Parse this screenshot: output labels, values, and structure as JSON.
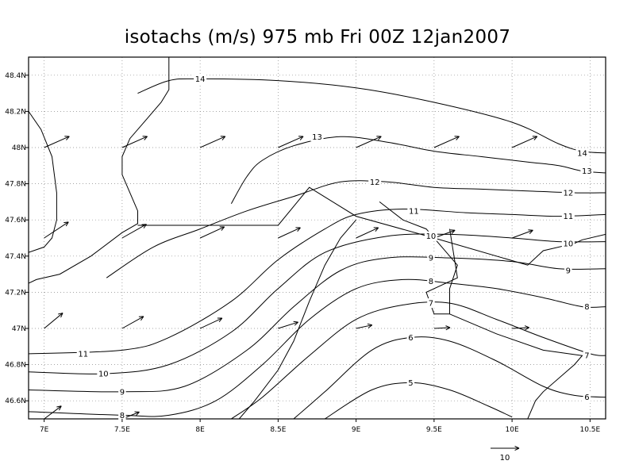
{
  "title": "isotachs (m/s) 975 mb Fri 00Z 12jan2007",
  "chart_data": {
    "type": "contour-map",
    "xlim": [
      6.9,
      10.6
    ],
    "ylim": [
      46.5,
      48.5
    ],
    "x_ticks": [
      {
        "value": 7.0,
        "label": "7E"
      },
      {
        "value": 7.5,
        "label": "7.5E"
      },
      {
        "value": 8.0,
        "label": "8E"
      },
      {
        "value": 8.5,
        "label": "8.5E"
      },
      {
        "value": 9.0,
        "label": "9E"
      },
      {
        "value": 9.5,
        "label": "9.5E"
      },
      {
        "value": 10.0,
        "label": "10E"
      },
      {
        "value": 10.5,
        "label": "10.5E"
      }
    ],
    "y_ticks": [
      {
        "value": 46.6,
        "label": "46.6N"
      },
      {
        "value": 46.8,
        "label": "46.8N"
      },
      {
        "value": 47.0,
        "label": "47N"
      },
      {
        "value": 47.2,
        "label": "47.2N"
      },
      {
        "value": 47.4,
        "label": "47.4N"
      },
      {
        "value": 47.6,
        "label": "47.6N"
      },
      {
        "value": 47.8,
        "label": "47.8N"
      },
      {
        "value": 48.0,
        "label": "48N"
      },
      {
        "value": 48.2,
        "label": "48.2N"
      },
      {
        "value": 48.4,
        "label": "48.4N"
      }
    ],
    "grid": true,
    "contours": [
      {
        "level": "14",
        "points": [
          [
            7.6,
            48.3
          ],
          [
            7.8,
            48.37
          ],
          [
            8.0,
            48.38
          ],
          [
            8.5,
            48.37
          ],
          [
            9.0,
            48.33
          ],
          [
            9.5,
            48.25
          ],
          [
            10.0,
            48.14
          ],
          [
            10.3,
            48.02
          ],
          [
            10.45,
            47.98
          ],
          [
            10.6,
            47.97
          ]
        ],
        "labels": [
          [
            8.0,
            48.38
          ],
          [
            10.45,
            47.97
          ]
        ]
      },
      {
        "level": "13",
        "points": [
          [
            8.2,
            47.69
          ],
          [
            8.3,
            47.84
          ],
          [
            8.4,
            47.93
          ],
          [
            8.6,
            48.01
          ],
          [
            8.9,
            48.06
          ],
          [
            9.2,
            48.03
          ],
          [
            9.5,
            47.98
          ],
          [
            9.8,
            47.95
          ],
          [
            10.1,
            47.92
          ],
          [
            10.3,
            47.9
          ],
          [
            10.45,
            47.87
          ],
          [
            10.6,
            47.86
          ]
        ],
        "labels": [
          [
            8.75,
            48.06
          ],
          [
            10.48,
            47.87
          ]
        ]
      },
      {
        "level": "12",
        "points": [
          [
            7.4,
            47.28
          ],
          [
            7.7,
            47.45
          ],
          [
            8.0,
            47.55
          ],
          [
            8.3,
            47.65
          ],
          [
            8.6,
            47.73
          ],
          [
            8.9,
            47.81
          ],
          [
            9.2,
            47.81
          ],
          [
            9.5,
            47.78
          ],
          [
            9.8,
            47.77
          ],
          [
            10.1,
            47.76
          ],
          [
            10.4,
            47.75
          ],
          [
            10.6,
            47.75
          ]
        ],
        "labels": [
          [
            9.12,
            47.81
          ],
          [
            10.36,
            47.75
          ]
        ]
      },
      {
        "level": "11",
        "points": [
          [
            6.9,
            46.86
          ],
          [
            7.5,
            46.88
          ],
          [
            7.8,
            46.95
          ],
          [
            8.2,
            47.15
          ],
          [
            8.5,
            47.38
          ],
          [
            8.8,
            47.55
          ],
          [
            9.0,
            47.63
          ],
          [
            9.3,
            47.66
          ],
          [
            9.7,
            47.64
          ],
          [
            10.0,
            47.63
          ],
          [
            10.3,
            47.62
          ],
          [
            10.6,
            47.63
          ]
        ],
        "labels": [
          [
            7.25,
            46.86
          ],
          [
            9.37,
            47.65
          ],
          [
            10.36,
            47.62
          ]
        ]
      },
      {
        "level": "10",
        "points": [
          [
            6.9,
            46.76
          ],
          [
            7.4,
            46.75
          ],
          [
            7.8,
            46.8
          ],
          [
            8.2,
            46.98
          ],
          [
            8.5,
            47.22
          ],
          [
            8.8,
            47.42
          ],
          [
            9.2,
            47.51
          ],
          [
            9.6,
            47.52
          ],
          [
            10.0,
            47.5
          ],
          [
            10.3,
            47.48
          ],
          [
            10.6,
            47.48
          ]
        ],
        "labels": [
          [
            7.38,
            46.75
          ],
          [
            9.48,
            47.51
          ],
          [
            10.36,
            47.47
          ]
        ]
      },
      {
        "level": "9",
        "points": [
          [
            6.9,
            46.66
          ],
          [
            7.5,
            46.65
          ],
          [
            7.9,
            46.68
          ],
          [
            8.3,
            46.88
          ],
          [
            8.6,
            47.12
          ],
          [
            8.9,
            47.32
          ],
          [
            9.2,
            47.39
          ],
          [
            9.6,
            47.39
          ],
          [
            10.0,
            47.37
          ],
          [
            10.3,
            47.33
          ],
          [
            10.6,
            47.33
          ]
        ],
        "labels": [
          [
            7.5,
            46.65
          ],
          [
            9.48,
            47.39
          ],
          [
            10.36,
            47.32
          ]
        ]
      },
      {
        "level": "8",
        "points": [
          [
            6.9,
            46.54
          ],
          [
            7.5,
            46.52
          ],
          [
            7.8,
            46.52
          ],
          [
            8.1,
            46.6
          ],
          [
            8.4,
            46.8
          ],
          [
            8.7,
            47.05
          ],
          [
            9.0,
            47.22
          ],
          [
            9.3,
            47.27
          ],
          [
            9.6,
            47.25
          ],
          [
            9.9,
            47.22
          ],
          [
            10.2,
            47.17
          ],
          [
            10.45,
            47.12
          ],
          [
            10.6,
            47.12
          ]
        ],
        "labels": [
          [
            7.5,
            46.52
          ],
          [
            9.48,
            47.26
          ],
          [
            10.48,
            47.12
          ]
        ]
      },
      {
        "level": "7",
        "points": [
          [
            8.2,
            46.5
          ],
          [
            8.4,
            46.62
          ],
          [
            8.7,
            46.85
          ],
          [
            9.0,
            47.05
          ],
          [
            9.3,
            47.13
          ],
          [
            9.6,
            47.14
          ],
          [
            9.9,
            47.05
          ],
          [
            10.2,
            46.95
          ],
          [
            10.5,
            46.86
          ],
          [
            10.6,
            46.85
          ]
        ],
        "labels": [
          [
            9.48,
            47.14
          ],
          [
            10.48,
            46.85
          ]
        ]
      },
      {
        "level": "6",
        "points": [
          [
            8.6,
            46.5
          ],
          [
            8.8,
            46.65
          ],
          [
            9.1,
            46.88
          ],
          [
            9.35,
            46.95
          ],
          [
            9.6,
            46.93
          ],
          [
            9.9,
            46.82
          ],
          [
            10.2,
            46.68
          ],
          [
            10.4,
            46.63
          ],
          [
            10.6,
            46.62
          ]
        ],
        "labels": [
          [
            9.35,
            46.95
          ],
          [
            10.48,
            46.62
          ]
        ]
      },
      {
        "level": "5",
        "points": [
          [
            8.8,
            46.5
          ],
          [
            9.1,
            46.66
          ],
          [
            9.35,
            46.7
          ],
          [
            9.6,
            46.66
          ],
          [
            9.85,
            46.57
          ],
          [
            10.0,
            46.51
          ]
        ],
        "labels": [
          [
            9.35,
            46.7
          ]
        ]
      }
    ],
    "borders": [
      [
        [
          6.9,
          48.2
        ],
        [
          6.98,
          48.1
        ],
        [
          7.05,
          47.95
        ],
        [
          7.08,
          47.75
        ],
        [
          7.08,
          47.6
        ],
        [
          7.05,
          47.5
        ],
        [
          7.0,
          47.45
        ],
        [
          6.9,
          47.42
        ]
      ],
      [
        [
          6.9,
          47.25
        ],
        [
          6.95,
          47.27
        ],
        [
          7.1,
          47.3
        ],
        [
          7.3,
          47.4
        ],
        [
          7.5,
          47.53
        ],
        [
          7.6,
          47.58
        ],
        [
          7.6,
          47.65
        ],
        [
          7.5,
          47.85
        ],
        [
          7.5,
          47.95
        ],
        [
          7.55,
          48.05
        ],
        [
          7.65,
          48.15
        ],
        [
          7.75,
          48.25
        ],
        [
          7.8,
          48.32
        ],
        [
          7.8,
          48.4
        ],
        [
          7.8,
          48.5
        ]
      ],
      [
        [
          7.6,
          47.57
        ],
        [
          8.0,
          47.57
        ],
        [
          8.4,
          47.57
        ],
        [
          8.5,
          47.57
        ],
        [
          8.7,
          47.78
        ],
        [
          9.0,
          47.62
        ],
        [
          9.5,
          47.5
        ],
        [
          10.1,
          47.35
        ],
        [
          10.2,
          47.43
        ],
        [
          10.4,
          47.47
        ],
        [
          10.45,
          47.49
        ],
        [
          10.6,
          47.52
        ]
      ],
      [
        [
          8.25,
          46.5
        ],
        [
          8.35,
          46.6
        ],
        [
          8.5,
          46.77
        ],
        [
          8.6,
          46.93
        ],
        [
          8.7,
          47.15
        ],
        [
          8.8,
          47.35
        ],
        [
          8.9,
          47.5
        ],
        [
          9.0,
          47.6
        ]
      ],
      [
        [
          9.15,
          47.7
        ],
        [
          9.3,
          47.6
        ],
        [
          9.45,
          47.55
        ],
        [
          9.55,
          47.45
        ],
        [
          9.65,
          47.35
        ],
        [
          9.6,
          47.22
        ],
        [
          9.6,
          47.08
        ],
        [
          9.5,
          47.08
        ],
        [
          9.45,
          47.2
        ],
        [
          9.65,
          47.28
        ],
        [
          9.6,
          47.55
        ]
      ],
      [
        [
          9.6,
          47.08
        ],
        [
          9.9,
          46.97
        ],
        [
          10.2,
          46.88
        ],
        [
          10.45,
          46.85
        ],
        [
          10.4,
          46.8
        ],
        [
          10.2,
          46.65
        ],
        [
          10.15,
          46.6
        ],
        [
          10.1,
          46.5
        ]
      ]
    ],
    "arrows": [
      {
        "lon": 7.0,
        "lat": 48.0,
        "u": 8.8,
        "v": 3.9
      },
      {
        "lon": 7.5,
        "lat": 48.0,
        "u": 8.8,
        "v": 3.9
      },
      {
        "lon": 8.0,
        "lat": 48.0,
        "u": 8.8,
        "v": 3.9
      },
      {
        "lon": 8.5,
        "lat": 48.0,
        "u": 8.8,
        "v": 3.9
      },
      {
        "lon": 9.0,
        "lat": 48.0,
        "u": 8.8,
        "v": 3.9
      },
      {
        "lon": 9.5,
        "lat": 48.0,
        "u": 8.8,
        "v": 3.9
      },
      {
        "lon": 10.0,
        "lat": 48.0,
        "u": 8.8,
        "v": 3.9
      },
      {
        "lon": 7.0,
        "lat": 47.5,
        "u": 8.5,
        "v": 5.6
      },
      {
        "lon": 7.5,
        "lat": 47.5,
        "u": 8.5,
        "v": 4.8
      },
      {
        "lon": 8.0,
        "lat": 47.5,
        "u": 8.5,
        "v": 3.9
      },
      {
        "lon": 8.5,
        "lat": 47.5,
        "u": 7.8,
        "v": 3.6
      },
      {
        "lon": 9.0,
        "lat": 47.5,
        "u": 7.8,
        "v": 3.6
      },
      {
        "lon": 9.5,
        "lat": 47.5,
        "u": 7.3,
        "v": 2.7
      },
      {
        "lon": 10.0,
        "lat": 47.5,
        "u": 7.3,
        "v": 2.7
      },
      {
        "lon": 7.0,
        "lat": 47.0,
        "u": 6.5,
        "v": 5.4
      },
      {
        "lon": 7.5,
        "lat": 47.0,
        "u": 7.5,
        "v": 4.2
      },
      {
        "lon": 8.0,
        "lat": 47.0,
        "u": 7.7,
        "v": 3.6
      },
      {
        "lon": 8.5,
        "lat": 47.0,
        "u": 7.0,
        "v": 2.2
      },
      {
        "lon": 9.0,
        "lat": 47.0,
        "u": 5.6,
        "v": 1.2
      },
      {
        "lon": 9.5,
        "lat": 47.0,
        "u": 5.6,
        "v": 0.3
      },
      {
        "lon": 10.0,
        "lat": 47.0,
        "u": 6.0,
        "v": 0.3
      },
      {
        "lon": 7.0,
        "lat": 46.5,
        "u": 6.0,
        "v": 4.5
      },
      {
        "lon": 7.5,
        "lat": 46.5,
        "u": 6.0,
        "v": 2.4
      }
    ],
    "reference_arrow": {
      "value": 10,
      "label": "10"
    }
  }
}
